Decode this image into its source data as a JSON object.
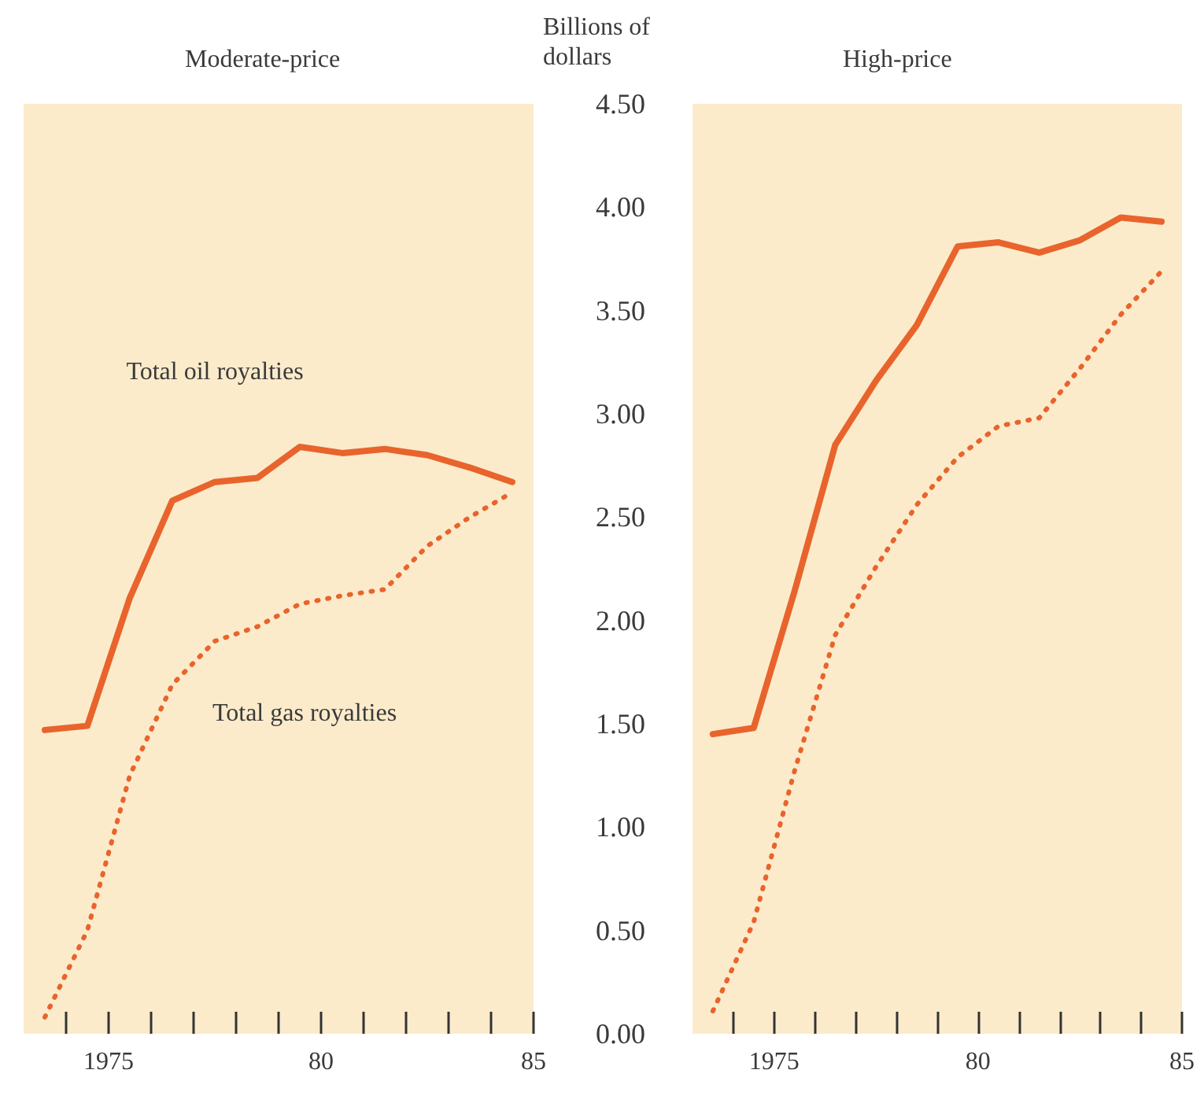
{
  "chart_data": [
    {
      "type": "line",
      "title": "Moderate-price",
      "x": [
        1973.5,
        1974.5,
        1975.5,
        1976.5,
        1977.5,
        1978.5,
        1979.5,
        1980.5,
        1981.5,
        1982.5,
        1983.5,
        1984.5
      ],
      "series": [
        {
          "name": "Total oil royalties",
          "color": "#e8642c",
          "line_style": "solid",
          "values": [
            1.47,
            1.49,
            2.11,
            2.58,
            2.67,
            2.69,
            2.84,
            2.81,
            2.83,
            2.8,
            2.74,
            2.67
          ]
        },
        {
          "name": "Total gas royalties",
          "color": "#e8642c",
          "line_style": "dotted",
          "values": [
            0.08,
            0.5,
            1.25,
            1.69,
            1.9,
            1.97,
            2.08,
            2.12,
            2.15,
            2.36,
            2.5,
            2.62
          ]
        }
      ],
      "xlim": [
        1973,
        1985
      ],
      "xticks": [
        {
          "value": 1974,
          "label": null
        },
        {
          "value": 1975,
          "label": "1975"
        },
        {
          "value": 1976,
          "label": null
        },
        {
          "value": 1977,
          "label": null
        },
        {
          "value": 1978,
          "label": null
        },
        {
          "value": 1979,
          "label": null
        },
        {
          "value": 1980,
          "label": "80"
        },
        {
          "value": 1981,
          "label": null
        },
        {
          "value": 1982,
          "label": null
        },
        {
          "value": 1983,
          "label": null
        },
        {
          "value": 1984,
          "label": null
        },
        {
          "value": 1985,
          "label": "85"
        }
      ],
      "ylim": [
        0,
        4.5
      ],
      "tick_labels": "x",
      "grid": false,
      "legend": false,
      "marker": "none"
    },
    {
      "type": "line",
      "title": "High-price",
      "ylabel": "Billions of dollars",
      "x": [
        1973.5,
        1974.5,
        1975.5,
        1976.5,
        1977.5,
        1978.5,
        1979.5,
        1980.5,
        1981.5,
        1982.5,
        1983.5,
        1984.5
      ],
      "series": [
        {
          "color": "#e8642c",
          "line_style": "solid",
          "values": [
            1.45,
            1.48,
            2.14,
            2.85,
            3.16,
            3.43,
            3.81,
            3.83,
            3.78,
            3.84,
            3.95,
            3.93
          ]
        },
        {
          "color": "#e8642c",
          "line_style": "dotted",
          "values": [
            0.11,
            0.54,
            1.27,
            1.93,
            2.26,
            2.56,
            2.79,
            2.94,
            2.98,
            3.22,
            3.48,
            3.69
          ]
        }
      ],
      "xlim": [
        1973,
        1985
      ],
      "xticks": [
        {
          "value": 1974,
          "label": null
        },
        {
          "value": 1975,
          "label": "1975"
        },
        {
          "value": 1976,
          "label": null
        },
        {
          "value": 1977,
          "label": null
        },
        {
          "value": 1978,
          "label": null
        },
        {
          "value": 1979,
          "label": null
        },
        {
          "value": 1980,
          "label": "80"
        },
        {
          "value": 1981,
          "label": null
        },
        {
          "value": 1982,
          "label": null
        },
        {
          "value": 1983,
          "label": null
        },
        {
          "value": 1984,
          "label": null
        },
        {
          "value": 1985,
          "label": "85"
        }
      ],
      "ylim": [
        0,
        4.5
      ],
      "yticks": [
        {
          "value": 0,
          "label": "0.00"
        },
        {
          "value": 0.5,
          "label": "0.50"
        },
        {
          "value": 1,
          "label": "1.00"
        },
        {
          "value": 1.5,
          "label": "1.50"
        },
        {
          "value": 2,
          "label": "2.00"
        },
        {
          "value": 2.5,
          "label": "2.50"
        },
        {
          "value": 3,
          "label": "3.00"
        },
        {
          "value": 3.5,
          "label": "3.50"
        },
        {
          "value": 4,
          "label": "4.00"
        },
        {
          "value": 4.5,
          "label": "4.50"
        }
      ],
      "grid": false,
      "legend": false,
      "marker": "none"
    }
  ]
}
